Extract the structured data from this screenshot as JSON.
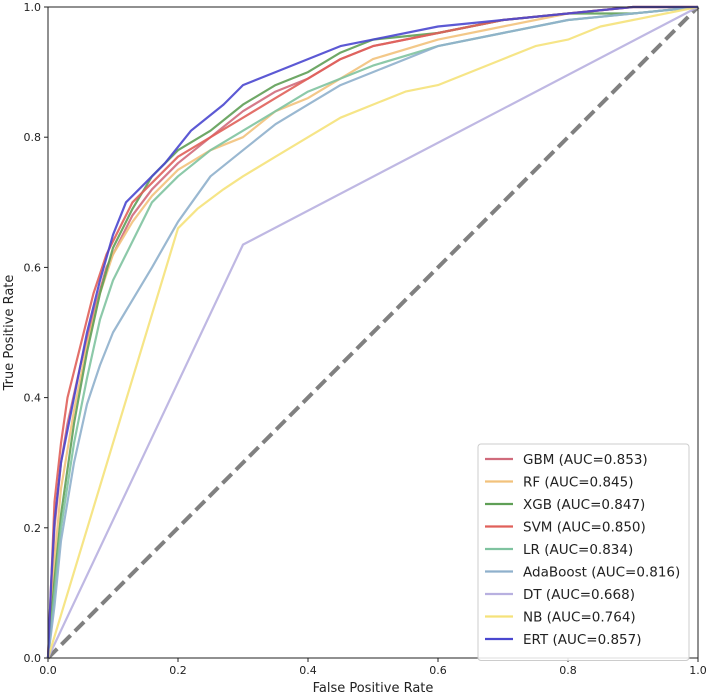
{
  "chart_data": {
    "type": "line",
    "title": "",
    "xlabel": "False Positive Rate",
    "ylabel": "True Positive Rate",
    "xlim": [
      0,
      1
    ],
    "ylim": [
      0,
      1
    ],
    "xticks": [
      "0.0",
      "0.2",
      "0.4",
      "0.6",
      "0.8",
      "1.0"
    ],
    "yticks": [
      "0.0",
      "0.2",
      "0.4",
      "0.6",
      "0.8",
      "1.0"
    ],
    "grid": false,
    "legend_position": "lower-right",
    "diagonal": {
      "name": "chance-diagonal",
      "color": "#808080",
      "x": [
        0,
        1
      ],
      "y": [
        0,
        1
      ]
    },
    "series": [
      {
        "name": "GBM",
        "label": "GBM (AUC=0.853)",
        "color": "#d06b7c",
        "x": [
          0,
          0.005,
          0.01,
          0.02,
          0.03,
          0.05,
          0.07,
          0.09,
          0.11,
          0.13,
          0.16,
          0.2,
          0.25,
          0.3,
          0.35,
          0.4,
          0.45,
          0.5,
          0.6,
          0.7,
          0.8,
          0.9,
          1.0
        ],
        "y": [
          0,
          0.1,
          0.2,
          0.3,
          0.36,
          0.45,
          0.53,
          0.6,
          0.64,
          0.68,
          0.72,
          0.76,
          0.8,
          0.84,
          0.87,
          0.89,
          0.92,
          0.94,
          0.96,
          0.98,
          0.99,
          1.0,
          1.0
        ]
      },
      {
        "name": "RF",
        "label": "RF (AUC=0.845)",
        "color": "#f2c27c",
        "x": [
          0,
          0.01,
          0.02,
          0.04,
          0.06,
          0.08,
          0.1,
          0.13,
          0.16,
          0.2,
          0.25,
          0.3,
          0.35,
          0.4,
          0.45,
          0.5,
          0.6,
          0.7,
          0.8,
          0.9,
          1.0
        ],
        "y": [
          0,
          0.15,
          0.26,
          0.38,
          0.48,
          0.56,
          0.62,
          0.67,
          0.71,
          0.75,
          0.78,
          0.8,
          0.84,
          0.86,
          0.89,
          0.92,
          0.95,
          0.97,
          0.99,
          1.0,
          1.0
        ]
      },
      {
        "name": "XGB",
        "label": "XGB (AUC=0.847)",
        "color": "#5f9f56",
        "x": [
          0,
          0.01,
          0.02,
          0.04,
          0.06,
          0.08,
          0.1,
          0.13,
          0.16,
          0.2,
          0.25,
          0.3,
          0.35,
          0.4,
          0.45,
          0.5,
          0.6,
          0.7,
          0.8,
          0.9,
          1.0
        ],
        "y": [
          0,
          0.12,
          0.22,
          0.36,
          0.47,
          0.56,
          0.63,
          0.69,
          0.74,
          0.78,
          0.81,
          0.85,
          0.88,
          0.9,
          0.93,
          0.95,
          0.96,
          0.98,
          0.99,
          0.99,
          1.0
        ]
      },
      {
        "name": "SVM",
        "label": "SVM (AUC=0.850)",
        "color": "#e0605a",
        "x": [
          0,
          0.005,
          0.01,
          0.02,
          0.03,
          0.05,
          0.07,
          0.09,
          0.11,
          0.13,
          0.16,
          0.2,
          0.25,
          0.3,
          0.35,
          0.4,
          0.45,
          0.5,
          0.6,
          0.7,
          0.8,
          0.9,
          1.0
        ],
        "y": [
          0,
          0.12,
          0.24,
          0.33,
          0.4,
          0.48,
          0.56,
          0.62,
          0.66,
          0.7,
          0.73,
          0.77,
          0.8,
          0.83,
          0.86,
          0.89,
          0.92,
          0.94,
          0.96,
          0.98,
          0.99,
          1.0,
          1.0
        ]
      },
      {
        "name": "LR",
        "label": "LR (AUC=0.834)",
        "color": "#7fc3a0",
        "x": [
          0,
          0.01,
          0.02,
          0.04,
          0.06,
          0.08,
          0.1,
          0.13,
          0.16,
          0.2,
          0.25,
          0.3,
          0.35,
          0.4,
          0.45,
          0.5,
          0.6,
          0.7,
          0.8,
          0.9,
          1.0
        ],
        "y": [
          0,
          0.1,
          0.2,
          0.33,
          0.43,
          0.52,
          0.58,
          0.64,
          0.7,
          0.74,
          0.78,
          0.81,
          0.84,
          0.87,
          0.89,
          0.91,
          0.94,
          0.96,
          0.98,
          0.99,
          1.0
        ]
      },
      {
        "name": "AdaBoost",
        "label": "AdaBoost (AUC=0.816)",
        "color": "#8fb0cc",
        "x": [
          0,
          0.01,
          0.02,
          0.04,
          0.06,
          0.08,
          0.1,
          0.13,
          0.16,
          0.2,
          0.25,
          0.3,
          0.35,
          0.4,
          0.45,
          0.5,
          0.6,
          0.7,
          0.8,
          0.9,
          1.0
        ],
        "y": [
          0,
          0.08,
          0.18,
          0.3,
          0.39,
          0.45,
          0.5,
          0.55,
          0.6,
          0.67,
          0.74,
          0.78,
          0.82,
          0.85,
          0.88,
          0.9,
          0.94,
          0.96,
          0.98,
          0.99,
          1.0
        ]
      },
      {
        "name": "DT",
        "label": "DT (AUC=0.668)",
        "color": "#b8b0e0",
        "x": [
          0,
          0.3,
          1.0
        ],
        "y": [
          0,
          0.635,
          1.0
        ]
      },
      {
        "name": "NB",
        "label": "NB (AUC=0.764)",
        "color": "#f5e27a",
        "x": [
          0,
          0.2,
          0.23,
          0.27,
          0.3,
          0.35,
          0.4,
          0.45,
          0.5,
          0.55,
          0.6,
          0.65,
          0.7,
          0.75,
          0.8,
          0.85,
          0.9,
          1.0
        ],
        "y": [
          0,
          0.66,
          0.69,
          0.72,
          0.74,
          0.77,
          0.8,
          0.83,
          0.85,
          0.87,
          0.88,
          0.9,
          0.92,
          0.94,
          0.95,
          0.97,
          0.98,
          1.0
        ]
      },
      {
        "name": "ERT",
        "label": "ERT (AUC=0.857)",
        "color": "#4a47cf",
        "x": [
          0,
          0.005,
          0.01,
          0.02,
          0.04,
          0.06,
          0.08,
          0.1,
          0.12,
          0.15,
          0.18,
          0.22,
          0.27,
          0.3,
          0.35,
          0.4,
          0.45,
          0.5,
          0.6,
          0.7,
          0.8,
          0.9,
          1.0
        ],
        "y": [
          0,
          0.12,
          0.21,
          0.3,
          0.4,
          0.5,
          0.58,
          0.65,
          0.7,
          0.73,
          0.76,
          0.81,
          0.85,
          0.88,
          0.9,
          0.92,
          0.94,
          0.95,
          0.97,
          0.98,
          0.99,
          1.0,
          1.0
        ]
      }
    ]
  }
}
